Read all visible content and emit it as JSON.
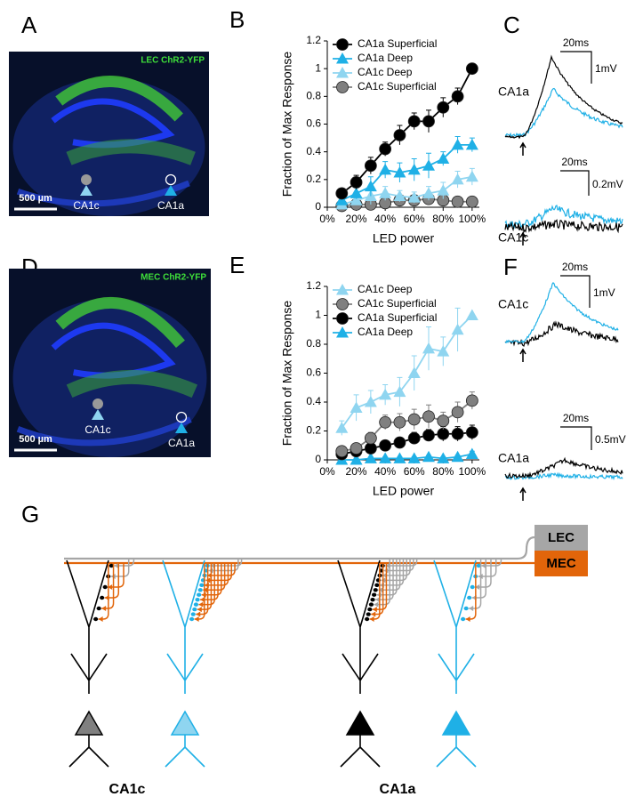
{
  "panel_labels": [
    "A",
    "B",
    "C",
    "D",
    "E",
    "F",
    "G"
  ],
  "images": [
    {
      "label": "LEC ChR2-YFP",
      "scale_bar": "500 µm",
      "markers": [
        "CA1c",
        "CA1a"
      ]
    },
    {
      "label": "MEC ChR2-YFP",
      "scale_bar": "500 µm",
      "markers": [
        "CA1c",
        "CA1a"
      ]
    }
  ],
  "chart_data": [
    {
      "type": "line",
      "xlabel": "LED power",
      "ylabel": "Fraction of Max Response",
      "x": [
        10,
        20,
        30,
        40,
        50,
        60,
        70,
        80,
        90,
        100
      ],
      "xlim": [
        0,
        105
      ],
      "ylim": [
        0,
        1.2
      ],
      "xticks": [
        {
          "value": 0,
          "label": "0%"
        },
        {
          "value": 20,
          "label": "20%"
        },
        {
          "value": 40,
          "label": "40%"
        },
        {
          "value": 60,
          "label": "60%"
        },
        {
          "value": 80,
          "label": "80%"
        },
        {
          "value": 100,
          "label": "100%"
        }
      ],
      "yticks": [
        0,
        0.2,
        0.4,
        0.6,
        0.8,
        1,
        1.2
      ],
      "legend": "upper left",
      "series": [
        {
          "name": "CA1a Superficial",
          "color": "#000000",
          "marker": "circle",
          "values": [
            0.1,
            0.18,
            0.3,
            0.42,
            0.52,
            0.62,
            0.62,
            0.72,
            0.8,
            1.0
          ],
          "errors": [
            0.03,
            0.05,
            0.06,
            0.05,
            0.07,
            0.06,
            0.08,
            0.07,
            0.06,
            0
          ]
        },
        {
          "name": "CA1a Deep",
          "color": "#1fb0e6",
          "marker": "triangle",
          "values": [
            0.05,
            0.1,
            0.15,
            0.27,
            0.25,
            0.27,
            0.3,
            0.35,
            0.45,
            0.45
          ],
          "errors": [
            0.02,
            0.04,
            0.07,
            0.06,
            0.07,
            0.08,
            0.09,
            0.05,
            0.06,
            0.05
          ]
        },
        {
          "name": "CA1c Deep",
          "color": "#8fd5f0",
          "marker": "triangle",
          "values": [
            0.02,
            0.05,
            0.08,
            0.1,
            0.08,
            0.07,
            0.1,
            0.12,
            0.2,
            0.22
          ],
          "errors": [
            0.01,
            0.03,
            0.06,
            0.05,
            0.04,
            0.04,
            0.05,
            0.06,
            0.06,
            0.06
          ]
        },
        {
          "name": "CA1c Superficial",
          "color": "#808080",
          "marker": "circle",
          "values": [
            0.01,
            0.02,
            0.02,
            0.03,
            0.05,
            0.05,
            0.06,
            0.05,
            0.04,
            0.04
          ],
          "errors": [
            0.01,
            0.01,
            0.02,
            0.02,
            0.03,
            0.03,
            0.04,
            0.03,
            0.03,
            0.02
          ]
        }
      ]
    },
    {
      "type": "line",
      "xlabel": "LED power",
      "ylabel": "Fraction of Max Response",
      "x": [
        10,
        20,
        30,
        40,
        50,
        60,
        70,
        80,
        90,
        100
      ],
      "xlim": [
        0,
        105
      ],
      "ylim": [
        0,
        1.2
      ],
      "xticks": [
        {
          "value": 0,
          "label": "0%"
        },
        {
          "value": 20,
          "label": "20%"
        },
        {
          "value": 40,
          "label": "40%"
        },
        {
          "value": 60,
          "label": "60%"
        },
        {
          "value": 80,
          "label": "80%"
        },
        {
          "value": 100,
          "label": "100%"
        }
      ],
      "yticks": [
        0,
        0.2,
        0.4,
        0.6,
        0.8,
        1,
        1.2
      ],
      "legend": "upper left",
      "series": [
        {
          "name": "CA1c Deep",
          "color": "#8fd5f0",
          "marker": "triangle",
          "values": [
            0.22,
            0.36,
            0.4,
            0.45,
            0.47,
            0.6,
            0.77,
            0.75,
            0.9,
            1.0
          ],
          "errors": [
            0.05,
            0.09,
            0.08,
            0.07,
            0.1,
            0.12,
            0.15,
            0.1,
            0.15,
            0
          ]
        },
        {
          "name": "CA1c Superficial",
          "color": "#808080",
          "marker": "circle",
          "values": [
            0.06,
            0.08,
            0.15,
            0.26,
            0.26,
            0.28,
            0.3,
            0.27,
            0.33,
            0.41
          ],
          "errors": [
            0.02,
            0.03,
            0.04,
            0.05,
            0.06,
            0.07,
            0.08,
            0.06,
            0.07,
            0.06
          ]
        },
        {
          "name": "CA1a Superficial",
          "color": "#000000",
          "marker": "circle",
          "values": [
            0.04,
            0.06,
            0.08,
            0.1,
            0.12,
            0.15,
            0.17,
            0.18,
            0.18,
            0.19
          ],
          "errors": [
            0.01,
            0.02,
            0.02,
            0.03,
            0.03,
            0.04,
            0.04,
            0.05,
            0.05,
            0.05
          ]
        },
        {
          "name": "CA1a Deep",
          "color": "#1fb0e6",
          "marker": "triangle",
          "values": [
            0.0,
            0.0,
            0.01,
            0.01,
            0.01,
            0.01,
            0.02,
            0.01,
            0.02,
            0.04
          ],
          "errors": [
            0.01,
            0.01,
            0.01,
            0.01,
            0.01,
            0.01,
            0.01,
            0.01,
            0.01,
            0.02
          ]
        }
      ]
    }
  ],
  "traces": [
    {
      "cells": [
        "CA1a",
        "CA1c"
      ],
      "scale_bars": [
        {
          "time": "20ms",
          "voltage": "1mV"
        },
        {
          "time": "20ms",
          "voltage": "0.2mV"
        }
      ]
    },
    {
      "cells": [
        "CA1c",
        "CA1a"
      ],
      "scale_bars": [
        {
          "time": "20ms",
          "voltage": "1mV"
        },
        {
          "time": "20ms",
          "voltage": "0.5mV"
        }
      ]
    }
  ],
  "diagram": {
    "inputs": [
      "LEC",
      "MEC"
    ],
    "regions": [
      "CA1c",
      "CA1a"
    ]
  }
}
